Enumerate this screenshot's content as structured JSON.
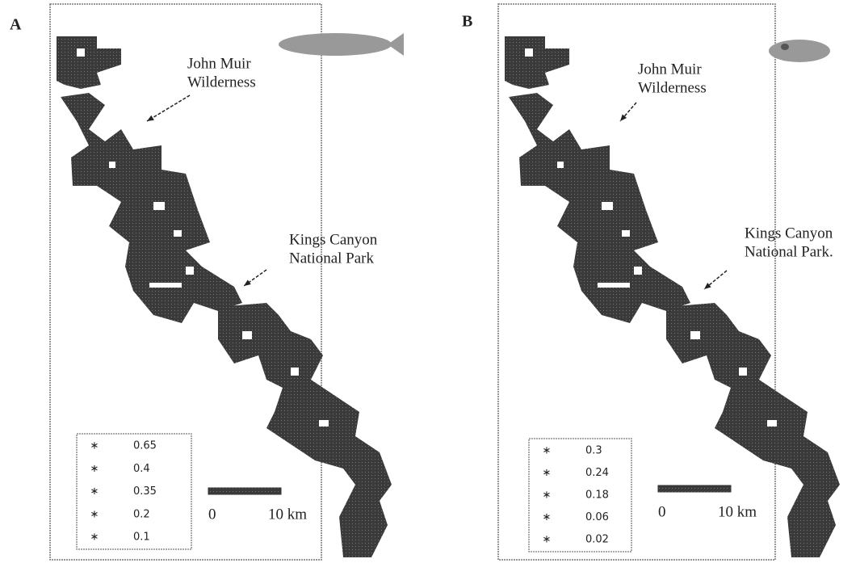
{
  "panels": [
    {
      "label": "A",
      "annotations": [
        {
          "lines": [
            "John Muir",
            "Wilderness"
          ]
        },
        {
          "lines": [
            "Kings Canyon",
            "National Park"
          ]
        }
      ],
      "legend": [
        "0.65",
        "0.4",
        "0.35",
        "0.2",
        "0.1"
      ],
      "scale": {
        "start": "0",
        "end": "10 km"
      }
    },
    {
      "label": "B",
      "annotations": [
        {
          "lines": [
            "John Muir",
            "Wilderness"
          ]
        },
        {
          "lines": [
            "Kings Canyon",
            "National Park."
          ]
        }
      ],
      "legend": [
        "0.3",
        "0.24",
        "0.18",
        "0.06",
        "0.02"
      ],
      "scale": {
        "start": "0",
        "end": "10 km"
      }
    }
  ]
}
